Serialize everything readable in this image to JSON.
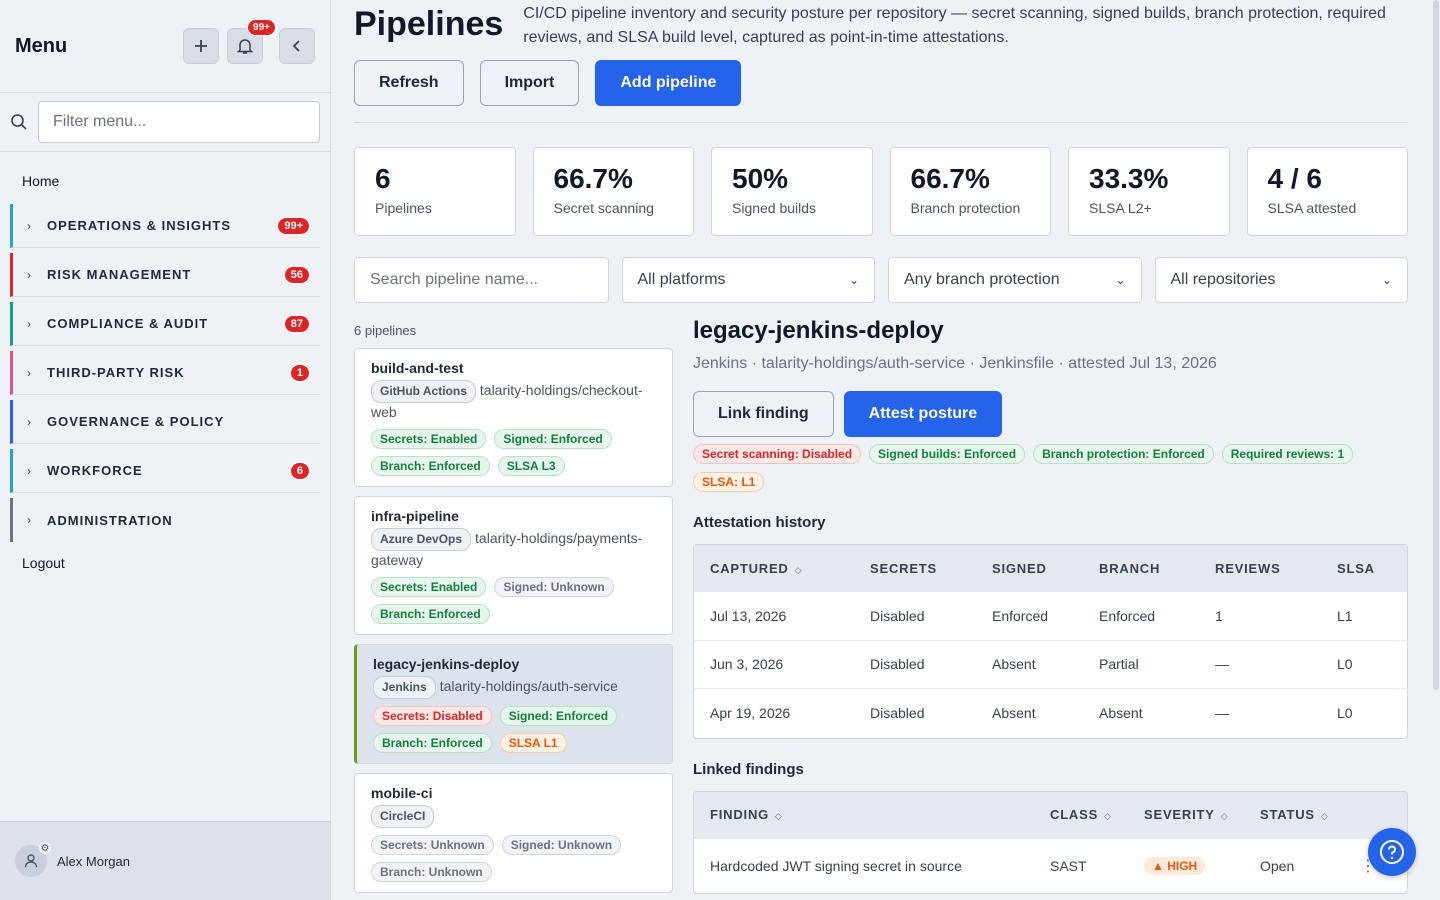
{
  "sidebar": {
    "title": "Menu",
    "notif_badge": "99+",
    "filter_placeholder": "Filter menu...",
    "home": "Home",
    "groups": [
      {
        "label": "OPERATIONS & INSIGHTS",
        "badge": "99+",
        "color": "#22a6c7"
      },
      {
        "label": "RISK MANAGEMENT",
        "badge": "56",
        "color": "#dc2626"
      },
      {
        "label": "COMPLIANCE & AUDIT",
        "badge": "87",
        "color": "#14a37f"
      },
      {
        "label": "THIRD-PARTY RISK",
        "badge": "1",
        "color": "#e0508a"
      },
      {
        "label": "GOVERNANCE & POLICY",
        "badge": "",
        "color": "#2563eb"
      },
      {
        "label": "WORKFORCE",
        "badge": "6",
        "color": "#22a6c7"
      },
      {
        "label": "ADMINISTRATION",
        "badge": "",
        "color": "#6b7280"
      }
    ],
    "logout": "Logout",
    "user_name": "Alex Morgan"
  },
  "page": {
    "title": "Pipelines",
    "description": "CI/CD pipeline inventory and security posture per repository — secret scanning, signed builds, branch protection, required reviews, and SLSA build level, captured as point-in-time attestations.",
    "buttons": {
      "refresh": "Refresh",
      "import": "Import",
      "add": "Add pipeline"
    }
  },
  "stats": [
    {
      "value": "6",
      "label": "Pipelines"
    },
    {
      "value": "66.7%",
      "label": "Secret scanning"
    },
    {
      "value": "50%",
      "label": "Signed builds"
    },
    {
      "value": "66.7%",
      "label": "Branch protection"
    },
    {
      "value": "33.3%",
      "label": "SLSA L2+"
    },
    {
      "value": "4 / 6",
      "label": "SLSA attested"
    }
  ],
  "filters": {
    "search_placeholder": "Search pipeline name...",
    "platform": "All platforms",
    "branch": "Any branch protection",
    "repo": "All repositories"
  },
  "list": {
    "count": "6 pipelines",
    "items": [
      {
        "name": "build-and-test",
        "platform": "GitHub Actions",
        "repo": "talarity-holdings/checkout-web",
        "tags": [
          [
            "Secrets: Enabled",
            "green"
          ],
          [
            "Signed: Enforced",
            "green"
          ],
          [
            "Branch: Enforced",
            "green"
          ],
          [
            "SLSA L3",
            "green"
          ]
        ]
      },
      {
        "name": "infra-pipeline",
        "platform": "Azure DevOps",
        "repo": "talarity-holdings/payments-gateway",
        "tags": [
          [
            "Secrets: Enabled",
            "green"
          ],
          [
            "Signed: Unknown",
            "gray"
          ],
          [
            "Branch: Enforced",
            "green"
          ]
        ]
      },
      {
        "name": "legacy-jenkins-deploy",
        "platform": "Jenkins",
        "repo": "talarity-holdings/auth-service",
        "tags": [
          [
            "Secrets: Disabled",
            "red"
          ],
          [
            "Signed: Enforced",
            "green"
          ],
          [
            "Branch: Enforced",
            "green"
          ],
          [
            "SLSA L1",
            "orange"
          ]
        ]
      },
      {
        "name": "mobile-ci",
        "platform": "CircleCI",
        "repo": "",
        "tags": [
          [
            "Secrets: Unknown",
            "gray"
          ],
          [
            "Signed: Unknown",
            "gray"
          ],
          [
            "Branch: Unknown",
            "gray"
          ]
        ]
      }
    ]
  },
  "detail": {
    "title": "legacy-jenkins-deploy",
    "subtitle": "Jenkins · talarity-holdings/auth-service · Jenkinsfile · attested Jul 13, 2026",
    "link_btn": "Link finding",
    "attest_btn": "Attest posture",
    "tags": [
      [
        "Secret scanning: Disabled",
        "red"
      ],
      [
        "Signed builds: Enforced",
        "green"
      ],
      [
        "Branch protection: Enforced",
        "green"
      ],
      [
        "Required reviews: 1",
        "green"
      ],
      [
        "SLSA: L1",
        "orange"
      ]
    ],
    "history_title": "Attestation history",
    "history_headers": [
      "CAPTURED",
      "SECRETS",
      "SIGNED",
      "BRANCH",
      "REVIEWS",
      "SLSA"
    ],
    "history_rows": [
      [
        "Jul 13, 2026",
        "Disabled",
        "Enforced",
        "Enforced",
        "1",
        "L1"
      ],
      [
        "Jun 3, 2026",
        "Disabled",
        "Absent",
        "Partial",
        "—",
        "L0"
      ],
      [
        "Apr 19, 2026",
        "Disabled",
        "Absent",
        "Absent",
        "—",
        "L0"
      ]
    ],
    "findings_title": "Linked findings",
    "findings_headers": [
      "FINDING",
      "CLASS",
      "SEVERITY",
      "STATUS"
    ],
    "findings_rows": [
      {
        "finding": "Hardcoded JWT signing secret in source",
        "class": "SAST",
        "severity": "HIGH",
        "status": "Open"
      }
    ]
  }
}
